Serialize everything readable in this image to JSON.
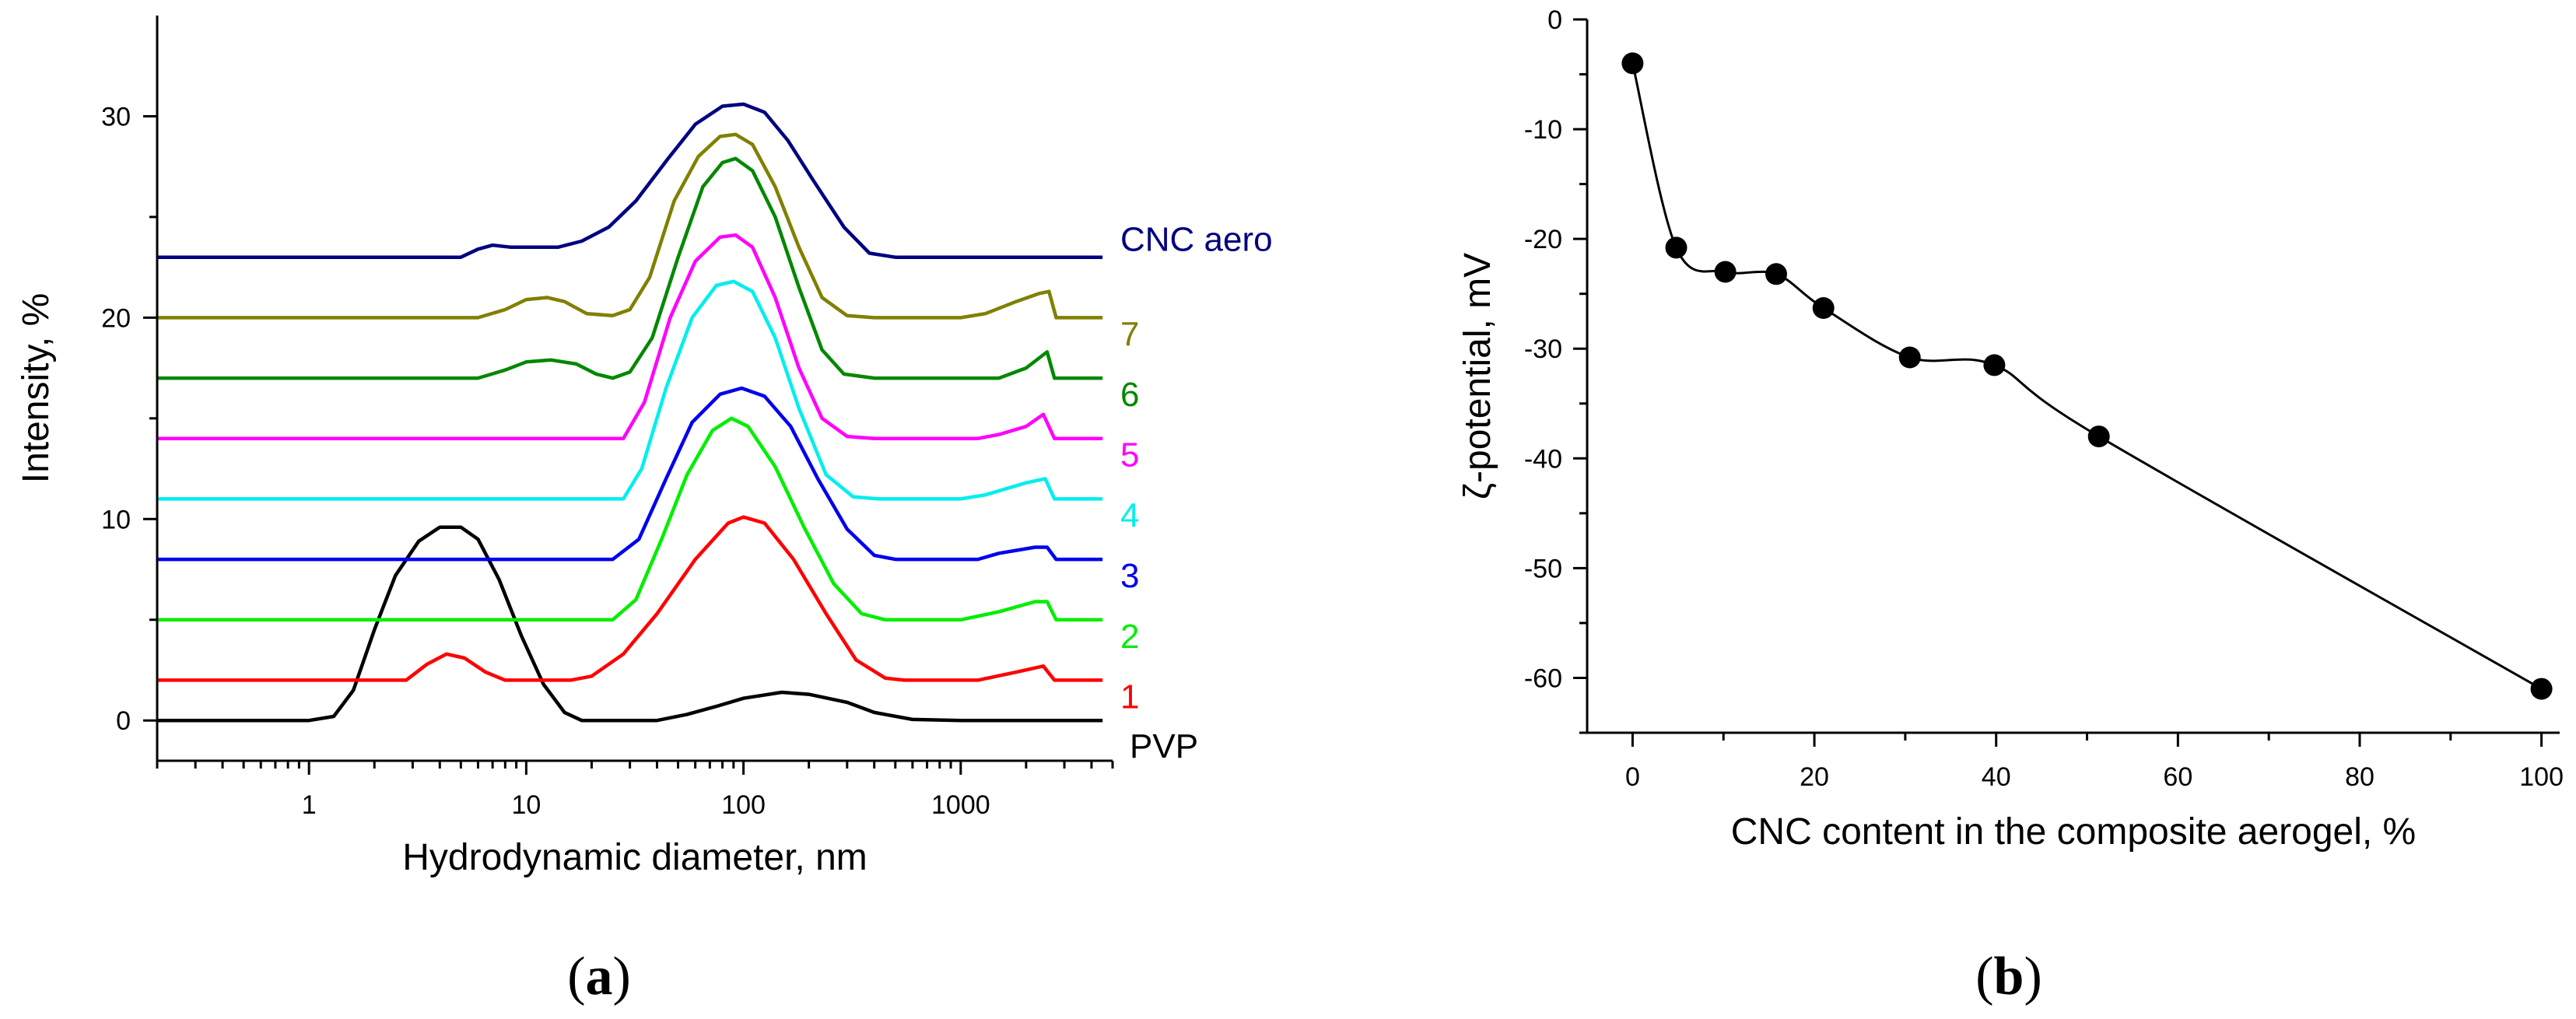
{
  "chart_data": [
    {
      "id": "a",
      "type": "line",
      "panel_label_open": "(",
      "panel_label_letter": "a",
      "panel_label_close": ")",
      "xlabel": "Hydrodynamic diameter, nm",
      "ylabel": "Intensity, %",
      "xscale": "log",
      "xlim": [
        0.2,
        5000
      ],
      "ylim": [
        -2,
        35
      ],
      "x_ticks": [
        {
          "v": 1,
          "label": "1"
        },
        {
          "v": 10,
          "label": "10"
        },
        {
          "v": 100,
          "label": "100"
        },
        {
          "v": 1000,
          "label": "1000"
        }
      ],
      "y_ticks": [
        {
          "v": 0,
          "label": "0"
        },
        {
          "v": 10,
          "label": "10"
        },
        {
          "v": 20,
          "label": "20"
        },
        {
          "v": 30,
          "label": "30"
        }
      ],
      "series": [
        {
          "name": "PVP",
          "color": "#000000",
          "points": [
            [
              0.2,
              0
            ],
            [
              1.0,
              0
            ],
            [
              1.3,
              0.2
            ],
            [
              1.6,
              1.5
            ],
            [
              2.0,
              4.5
            ],
            [
              2.5,
              7.2
            ],
            [
              3.2,
              8.9
            ],
            [
              4.0,
              9.6
            ],
            [
              5.0,
              9.6
            ],
            [
              6.0,
              9.0
            ],
            [
              7.5,
              7.0
            ],
            [
              9.5,
              4.2
            ],
            [
              12,
              1.8
            ],
            [
              15,
              0.4
            ],
            [
              18,
              0
            ],
            [
              40,
              0
            ],
            [
              55,
              0.3
            ],
            [
              75,
              0.7
            ],
            [
              100,
              1.1
            ],
            [
              150,
              1.4
            ],
            [
              200,
              1.3
            ],
            [
              300,
              0.9
            ],
            [
              400,
              0.4
            ],
            [
              600,
              0.05
            ],
            [
              1000,
              0
            ],
            [
              4500,
              0
            ]
          ]
        },
        {
          "name": "1",
          "color": "#ff0000",
          "points": [
            [
              0.2,
              2
            ],
            [
              2.8,
              2
            ],
            [
              3.5,
              2.8
            ],
            [
              4.3,
              3.3
            ],
            [
              5.2,
              3.1
            ],
            [
              6.5,
              2.4
            ],
            [
              8,
              2
            ],
            [
              16,
              2
            ],
            [
              20,
              2.2
            ],
            [
              28,
              3.3
            ],
            [
              40,
              5.3
            ],
            [
              60,
              8.0
            ],
            [
              85,
              9.8
            ],
            [
              100,
              10.1
            ],
            [
              125,
              9.8
            ],
            [
              170,
              8.0
            ],
            [
              240,
              5.3
            ],
            [
              330,
              3.0
            ],
            [
              450,
              2.1
            ],
            [
              550,
              2
            ],
            [
              1200,
              2
            ],
            [
              1800,
              2.4
            ],
            [
              2400,
              2.7
            ],
            [
              2700,
              2
            ],
            [
              4500,
              2
            ]
          ]
        },
        {
          "name": "2",
          "color": "#00ee00",
          "points": [
            [
              0.2,
              5
            ],
            [
              25,
              5
            ],
            [
              32,
              6
            ],
            [
              42,
              9
            ],
            [
              55,
              12.2
            ],
            [
              72,
              14.4
            ],
            [
              88,
              15
            ],
            [
              105,
              14.6
            ],
            [
              140,
              12.6
            ],
            [
              190,
              9.6
            ],
            [
              260,
              6.8
            ],
            [
              350,
              5.3
            ],
            [
              450,
              5
            ],
            [
              1000,
              5
            ],
            [
              1500,
              5.4
            ],
            [
              2200,
              5.9
            ],
            [
              2500,
              5.9
            ],
            [
              2750,
              5
            ],
            [
              4500,
              5
            ]
          ]
        },
        {
          "name": "3",
          "color": "#0000ee",
          "points": [
            [
              0.2,
              8
            ],
            [
              25,
              8
            ],
            [
              33,
              9
            ],
            [
              44,
              12
            ],
            [
              58,
              14.8
            ],
            [
              78,
              16.2
            ],
            [
              98,
              16.5
            ],
            [
              125,
              16.1
            ],
            [
              165,
              14.6
            ],
            [
              220,
              12
            ],
            [
              300,
              9.5
            ],
            [
              400,
              8.2
            ],
            [
              500,
              8
            ],
            [
              1200,
              8
            ],
            [
              1500,
              8.3
            ],
            [
              2200,
              8.6
            ],
            [
              2500,
              8.6
            ],
            [
              2750,
              8
            ],
            [
              4500,
              8
            ]
          ]
        },
        {
          "name": "4",
          "color": "#00eeee",
          "points": [
            [
              0.2,
              11
            ],
            [
              28,
              11
            ],
            [
              34,
              12.5
            ],
            [
              44,
              16.5
            ],
            [
              58,
              20
            ],
            [
              75,
              21.6
            ],
            [
              90,
              21.8
            ],
            [
              110,
              21.3
            ],
            [
              140,
              19
            ],
            [
              180,
              15.5
            ],
            [
              240,
              12.2
            ],
            [
              320,
              11.1
            ],
            [
              420,
              11
            ],
            [
              1000,
              11
            ],
            [
              1300,
              11.2
            ],
            [
              2000,
              11.8
            ],
            [
              2450,
              12
            ],
            [
              2700,
              11
            ],
            [
              4500,
              11
            ]
          ]
        },
        {
          "name": "5",
          "color": "#ff00ff",
          "points": [
            [
              0.2,
              14
            ],
            [
              28,
              14
            ],
            [
              35,
              15.8
            ],
            [
              46,
              20
            ],
            [
              60,
              22.8
            ],
            [
              78,
              24
            ],
            [
              92,
              24.1
            ],
            [
              110,
              23.5
            ],
            [
              140,
              21
            ],
            [
              180,
              17.5
            ],
            [
              230,
              15
            ],
            [
              300,
              14.1
            ],
            [
              400,
              14
            ],
            [
              1200,
              14
            ],
            [
              1500,
              14.2
            ],
            [
              2000,
              14.6
            ],
            [
              2400,
              15.2
            ],
            [
              2700,
              14
            ],
            [
              4500,
              14
            ]
          ]
        },
        {
          "name": "6",
          "color": "#008800",
          "points": [
            [
              0.2,
              17
            ],
            [
              6,
              17
            ],
            [
              8,
              17.4
            ],
            [
              10,
              17.8
            ],
            [
              13,
              17.9
            ],
            [
              17,
              17.7
            ],
            [
              21,
              17.2
            ],
            [
              25,
              17
            ],
            [
              30,
              17.3
            ],
            [
              38,
              19
            ],
            [
              50,
              23
            ],
            [
              65,
              26.5
            ],
            [
              80,
              27.7
            ],
            [
              92,
              27.9
            ],
            [
              110,
              27.3
            ],
            [
              140,
              25
            ],
            [
              180,
              21.5
            ],
            [
              230,
              18.4
            ],
            [
              290,
              17.2
            ],
            [
              400,
              17
            ],
            [
              1500,
              17
            ],
            [
              2000,
              17.5
            ],
            [
              2500,
              18.3
            ],
            [
              2700,
              17
            ],
            [
              4500,
              17
            ]
          ]
        },
        {
          "name": "7",
          "color": "#808000",
          "points": [
            [
              0.2,
              20
            ],
            [
              6,
              20
            ],
            [
              8,
              20.4
            ],
            [
              10,
              20.9
            ],
            [
              12.5,
              21
            ],
            [
              15,
              20.8
            ],
            [
              19,
              20.2
            ],
            [
              25,
              20.1
            ],
            [
              30,
              20.4
            ],
            [
              37,
              22
            ],
            [
              48,
              25.8
            ],
            [
              62,
              28
            ],
            [
              78,
              29
            ],
            [
              92,
              29.1
            ],
            [
              110,
              28.6
            ],
            [
              140,
              26.5
            ],
            [
              180,
              23.5
            ],
            [
              230,
              21
            ],
            [
              300,
              20.1
            ],
            [
              400,
              20
            ],
            [
              1000,
              20
            ],
            [
              1300,
              20.2
            ],
            [
              1800,
              20.8
            ],
            [
              2300,
              21.2
            ],
            [
              2550,
              21.3
            ],
            [
              2750,
              20
            ],
            [
              4500,
              20
            ]
          ]
        },
        {
          "name": "CNC aero",
          "color": "#000080",
          "points": [
            [
              0.2,
              23
            ],
            [
              5,
              23
            ],
            [
              6,
              23.4
            ],
            [
              7,
              23.6
            ],
            [
              8.5,
              23.5
            ],
            [
              11,
              23.5
            ],
            [
              14,
              23.5
            ],
            [
              18,
              23.8
            ],
            [
              24,
              24.5
            ],
            [
              32,
              25.8
            ],
            [
              45,
              27.9
            ],
            [
              60,
              29.6
            ],
            [
              80,
              30.5
            ],
            [
              100,
              30.6
            ],
            [
              125,
              30.2
            ],
            [
              160,
              28.8
            ],
            [
              210,
              26.8
            ],
            [
              290,
              24.5
            ],
            [
              380,
              23.2
            ],
            [
              500,
              23
            ],
            [
              4500,
              23
            ]
          ]
        }
      ]
    },
    {
      "id": "b",
      "type": "line",
      "panel_label_open": "(",
      "panel_label_letter": "b",
      "panel_label_close": ")",
      "xlabel": "CNC content in the composite aerogel, %",
      "ylabel": "ζ-potential, mV",
      "xlim": [
        -5,
        102
      ],
      "ylim": [
        -65,
        0
      ],
      "x_ticks": [
        {
          "v": 0,
          "label": "0"
        },
        {
          "v": 20,
          "label": "20"
        },
        {
          "v": 40,
          "label": "40"
        },
        {
          "v": 60,
          "label": "60"
        },
        {
          "v": 80,
          "label": "80"
        },
        {
          "v": 100,
          "label": "100"
        }
      ],
      "y_ticks": [
        {
          "v": 0,
          "label": "0"
        },
        {
          "v": -10,
          "label": "-10"
        },
        {
          "v": -20,
          "label": "-20"
        },
        {
          "v": -30,
          "label": "-30"
        },
        {
          "v": -40,
          "label": "-40"
        },
        {
          "v": -50,
          "label": "-50"
        },
        {
          "v": -60,
          "label": "-60"
        }
      ],
      "series": [
        {
          "name": "zeta",
          "color": "#000000",
          "x": [
            0,
            4.8,
            10.2,
            15.8,
            21,
            30.5,
            39.8,
            51.3,
            100
          ],
          "y": [
            -4,
            -20.8,
            -23,
            -23.2,
            -26.3,
            -30.8,
            -31.5,
            -38,
            -61
          ]
        }
      ]
    }
  ]
}
